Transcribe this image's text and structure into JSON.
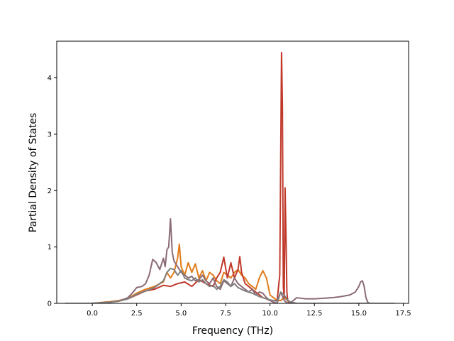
{
  "chart_data": {
    "type": "line",
    "title": "",
    "xlabel": "Frequency (THz)",
    "ylabel": "Partial Density of States",
    "xlim": [
      -2.0,
      17.8
    ],
    "ylim": [
      0,
      4.65
    ],
    "xticks": [
      0.0,
      2.5,
      5.0,
      7.5,
      10.0,
      12.5,
      15.0,
      17.5
    ],
    "xtick_labels": [
      "0.0",
      "2.5",
      "5.0",
      "7.5",
      "10.0",
      "12.5",
      "15.0",
      "17.5"
    ],
    "yticks": [
      0,
      1,
      2,
      3,
      4
    ],
    "ytick_labels": [
      "0",
      "1",
      "2",
      "3",
      "4"
    ],
    "grid": false,
    "legend": "none",
    "series": [
      {
        "color": "#e07b1c",
        "x": [
          -1.5,
          0.0,
          1.0,
          1.5,
          2.0,
          2.5,
          3.0,
          3.5,
          4.0,
          4.2,
          4.4,
          4.6,
          4.8,
          4.9,
          5.0,
          5.2,
          5.4,
          5.6,
          5.8,
          6.0,
          6.2,
          6.4,
          6.6,
          6.8,
          7.0,
          7.2,
          7.4,
          7.6,
          7.8,
          8.0,
          8.2,
          8.4,
          8.6,
          8.8,
          9.0,
          9.2,
          9.4,
          9.6,
          9.8,
          10.0,
          10.2,
          10.4,
          10.6,
          10.8,
          11.0,
          11.2,
          11.6,
          12.0,
          13.0,
          14.0,
          15.0,
          16.0,
          17.0
        ],
        "y": [
          0,
          0,
          0.03,
          0.05,
          0.09,
          0.18,
          0.25,
          0.3,
          0.38,
          0.55,
          0.45,
          0.55,
          0.8,
          1.05,
          0.65,
          0.5,
          0.72,
          0.55,
          0.7,
          0.45,
          0.58,
          0.4,
          0.55,
          0.5,
          0.4,
          0.35,
          0.55,
          0.5,
          0.45,
          0.55,
          0.6,
          0.5,
          0.45,
          0.35,
          0.3,
          0.25,
          0.45,
          0.58,
          0.45,
          0.15,
          0.1,
          0.05,
          0.05,
          0.1,
          0.05,
          0,
          0,
          0,
          0,
          0,
          0,
          0,
          0
        ]
      },
      {
        "color": "#c0392b",
        "x": [
          -1.5,
          0.0,
          1.0,
          1.5,
          2.0,
          2.5,
          3.0,
          3.5,
          4.0,
          4.4,
          4.8,
          5.2,
          5.6,
          6.0,
          6.4,
          6.8,
          7.0,
          7.2,
          7.4,
          7.6,
          7.8,
          8.0,
          8.2,
          8.3,
          8.4,
          8.6,
          8.8,
          9.0,
          9.2,
          9.4,
          9.6,
          9.8,
          10.0,
          10.2,
          10.4,
          10.55,
          10.65,
          10.7,
          10.75,
          10.8,
          10.85,
          10.9,
          10.95,
          11.0,
          11.05,
          11.1,
          11.2,
          12.0,
          13.0,
          14.0,
          15.0,
          16.0,
          17.0
        ],
        "y": [
          0,
          0,
          0.02,
          0.04,
          0.08,
          0.15,
          0.22,
          0.25,
          0.32,
          0.3,
          0.35,
          0.38,
          0.3,
          0.42,
          0.35,
          0.3,
          0.45,
          0.55,
          0.82,
          0.45,
          0.72,
          0.45,
          0.6,
          0.83,
          0.55,
          0.35,
          0.3,
          0.25,
          0.2,
          0.15,
          0.1,
          0.08,
          0.05,
          0.05,
          0.05,
          0.5,
          4.45,
          3.5,
          0.3,
          0.1,
          2.05,
          1.2,
          0.2,
          0.05,
          0.02,
          0,
          0,
          0,
          0,
          0,
          0,
          0,
          0
        ]
      },
      {
        "color": "#8c6b74",
        "x": [
          -1.5,
          0.0,
          1.0,
          1.5,
          2.0,
          2.3,
          2.5,
          2.8,
          3.0,
          3.2,
          3.4,
          3.6,
          3.8,
          4.0,
          4.1,
          4.2,
          4.3,
          4.4,
          4.5,
          4.6,
          4.8,
          5.0,
          5.2,
          5.4,
          5.6,
          5.8,
          6.0,
          6.2,
          6.4,
          6.6,
          6.8,
          7.0,
          7.2,
          7.4,
          7.6,
          7.8,
          8.0,
          8.2,
          8.4,
          8.6,
          8.8,
          9.0,
          9.2,
          9.4,
          9.6,
          9.8,
          10.0,
          10.2,
          10.4,
          10.6,
          10.8,
          11.0,
          11.2,
          11.5,
          12.0,
          12.5,
          13.0,
          13.5,
          14.0,
          14.5,
          14.8,
          15.0,
          15.1,
          15.2,
          15.3,
          15.4,
          15.5,
          15.6,
          16.0,
          17.0
        ],
        "y": [
          0,
          0,
          0.02,
          0.04,
          0.1,
          0.2,
          0.28,
          0.3,
          0.35,
          0.5,
          0.78,
          0.72,
          0.6,
          0.8,
          0.65,
          0.95,
          1.0,
          1.5,
          0.9,
          0.75,
          0.65,
          0.55,
          0.5,
          0.45,
          0.48,
          0.4,
          0.42,
          0.5,
          0.4,
          0.35,
          0.45,
          0.3,
          0.25,
          0.4,
          0.35,
          0.3,
          0.45,
          0.35,
          0.3,
          0.25,
          0.2,
          0.25,
          0.15,
          0.2,
          0.18,
          0.1,
          0.05,
          0.02,
          0.0,
          0.2,
          0.05,
          0.0,
          0.02,
          0.1,
          0.08,
          0.08,
          0.09,
          0.1,
          0.12,
          0.15,
          0.2,
          0.3,
          0.38,
          0.4,
          0.3,
          0.1,
          0.02,
          0,
          0,
          0
        ]
      },
      {
        "color": "#7f7f7f",
        "x": [
          -1.5,
          0.0,
          1.0,
          1.5,
          2.0,
          2.5,
          3.0,
          3.5,
          4.0,
          4.2,
          4.4,
          4.6,
          4.8,
          5.0,
          5.2,
          5.4,
          5.6,
          5.8,
          6.0,
          6.2,
          6.4,
          6.6,
          6.8,
          7.0,
          7.2,
          7.4,
          7.6,
          7.8,
          8.0,
          8.2,
          8.4,
          8.6,
          8.8,
          9.0,
          9.2,
          9.4,
          9.6,
          9.8,
          10.0,
          10.2,
          10.4,
          10.6,
          10.8,
          11.0,
          11.2,
          11.5,
          12.0,
          13.0,
          14.0,
          15.0,
          16.0,
          17.0
        ],
        "y": [
          0,
          0,
          0.02,
          0.04,
          0.08,
          0.16,
          0.22,
          0.28,
          0.4,
          0.55,
          0.62,
          0.6,
          0.5,
          0.58,
          0.45,
          0.42,
          0.4,
          0.45,
          0.38,
          0.42,
          0.35,
          0.3,
          0.32,
          0.25,
          0.3,
          0.42,
          0.38,
          0.3,
          0.35,
          0.28,
          0.25,
          0.22,
          0.2,
          0.18,
          0.15,
          0.12,
          0.1,
          0.08,
          0.06,
          0.05,
          0.04,
          0.2,
          0.15,
          0.05,
          0.02,
          0,
          0,
          0,
          0,
          0,
          0,
          0
        ]
      }
    ]
  }
}
